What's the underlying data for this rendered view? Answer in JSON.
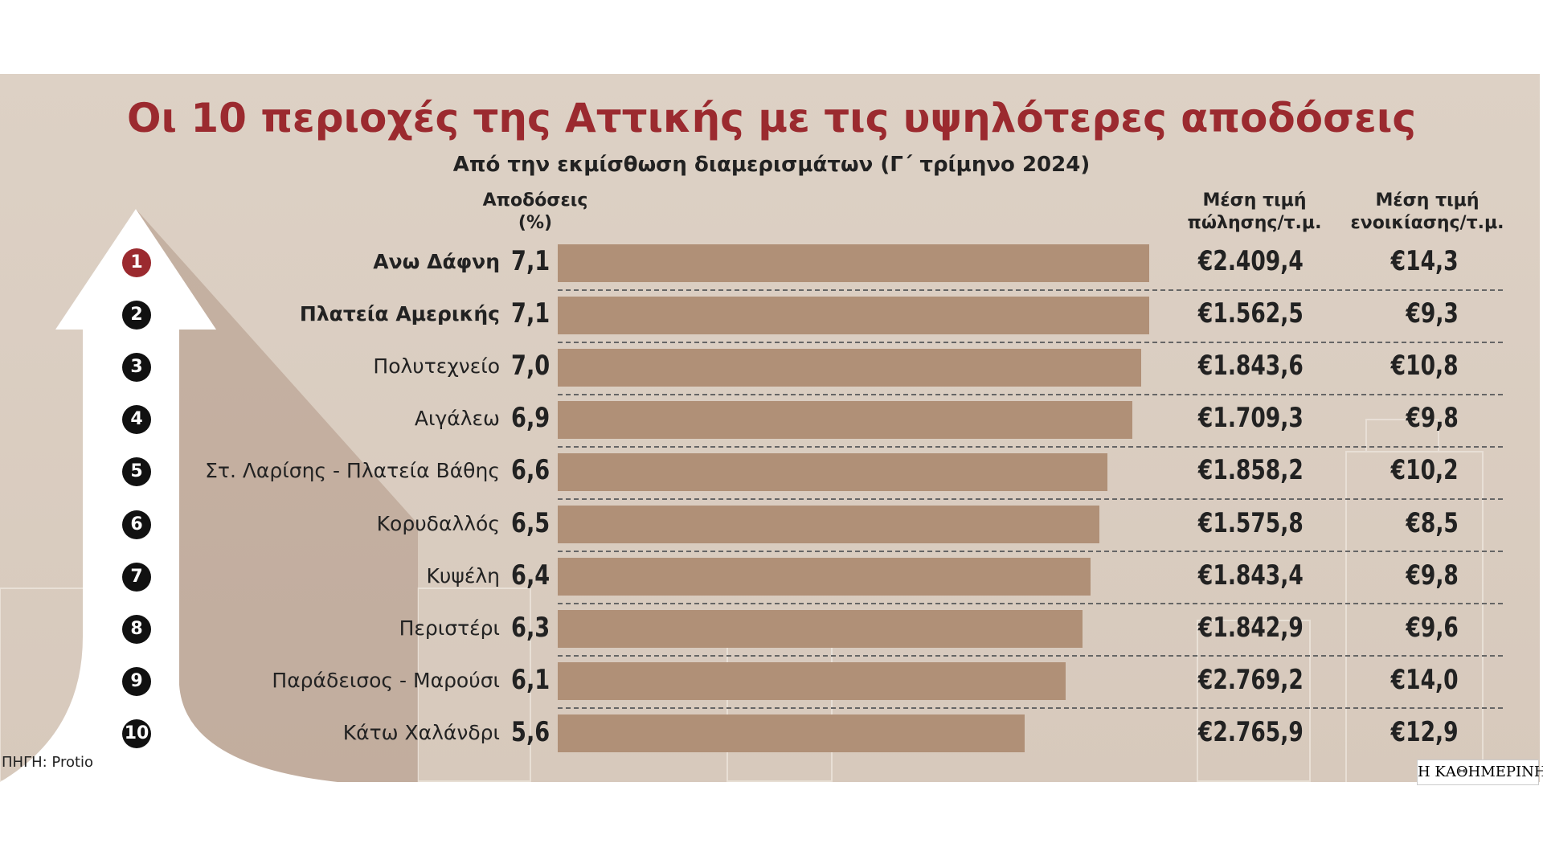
{
  "chart_data": {
    "type": "bar",
    "title": "Οι 10 περιοχές της Αττικής με τις υψηλότερες αποδόσεις",
    "subtitle": "Από την εκμίσθωση διαμερισμάτων (Γ΄ τρίμηνο 2024)",
    "yield_header": "Αποδόσεις (%)",
    "price_header": "Μέση τιμή πώλησης/τ.μ.",
    "rent_header": "Μέση τιμή ενοικίασης/τ.μ.",
    "ranks": [
      1,
      2,
      3,
      4,
      5,
      6,
      7,
      8,
      9,
      10
    ],
    "categories": [
      "Ανω Δάφνη",
      "Πλατεία Αμερικής",
      "Πολυτεχνείο",
      "Αιγάλεω",
      "Στ. Λαρίσης - Πλατεία Βάθης",
      "Κορυδαλλός",
      "Κυψέλη",
      "Περιστέρι",
      "Παράδεισος - Μαρούσι",
      "Κάτω Χαλάνδρι"
    ],
    "values": [
      7.1,
      7.1,
      7.0,
      6.9,
      6.6,
      6.5,
      6.4,
      6.3,
      6.1,
      5.6
    ],
    "value_labels": [
      "7,1",
      "7,1",
      "7,0",
      "6,9",
      "6,6",
      "6,5",
      "6,4",
      "6,3",
      "6,1",
      "5,6"
    ],
    "color": "#b09077",
    "sale_price": [
      "€2.409,4",
      "€1.562,5",
      "€1.843,6",
      "€1.709,3",
      "€1.858,2",
      "€1.575,8",
      "€1.843,4",
      "€1.842,9",
      "€2.769,2",
      "€2.765,9"
    ],
    "rent_price": [
      "€14,3",
      "€9,3",
      "€10,8",
      "€9,8",
      "€10,2",
      "€8,5",
      "€9,8",
      "€9,6",
      "€14,0",
      "€12,9"
    ],
    "source": "ΠΗΓΗ: Protio",
    "credit": "Η ΚΑΘΗΜΕΡΙΝΗ"
  }
}
